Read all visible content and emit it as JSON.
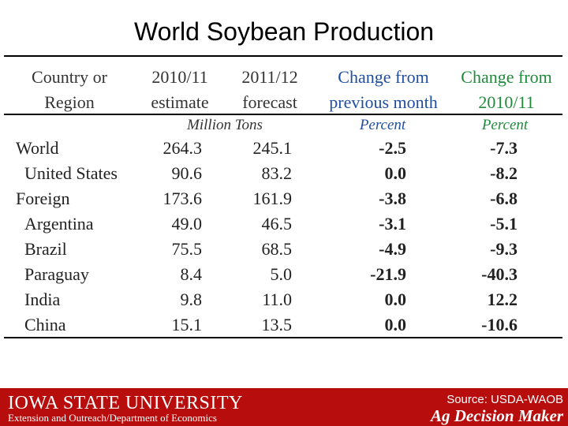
{
  "title": "World Soybean Production",
  "columns": [
    {
      "line1": "Country or",
      "line2": "Region",
      "color": "#333333"
    },
    {
      "line1": "2010/11",
      "line2": "estimate",
      "color": "#333333"
    },
    {
      "line1": "2011/12",
      "line2": "forecast",
      "color": "#333333"
    },
    {
      "line1": "Change from",
      "line2": "previous month",
      "color": "#1f4e9e"
    },
    {
      "line1": "Change from",
      "line2": "2010/11",
      "color": "#1f8a3a"
    }
  ],
  "units": {
    "tons": "Million Tons",
    "pct_month": "Percent",
    "pct_year": "Percent"
  },
  "rows": [
    {
      "region": "World",
      "indent": false,
      "est": "264.3",
      "fcst": "245.1",
      "chg_month": "-2.5",
      "chg_year": "-7.3"
    },
    {
      "region": "United States",
      "indent": true,
      "est": "90.6",
      "fcst": "83.2",
      "chg_month": "0.0",
      "chg_year": "-8.2"
    },
    {
      "region": "Foreign",
      "indent": false,
      "est": "173.6",
      "fcst": "161.9",
      "chg_month": "-3.8",
      "chg_year": "-6.8"
    },
    {
      "region": "Argentina",
      "indent": true,
      "est": "49.0",
      "fcst": "46.5",
      "chg_month": "-3.1",
      "chg_year": "-5.1"
    },
    {
      "region": "Brazil",
      "indent": true,
      "est": "75.5",
      "fcst": "68.5",
      "chg_month": "-4.9",
      "chg_year": "-9.3"
    },
    {
      "region": "Paraguay",
      "indent": true,
      "est": "8.4",
      "fcst": "5.0",
      "chg_month": "-21.9",
      "chg_year": "-40.3"
    },
    {
      "region": "India",
      "indent": true,
      "est": "9.8",
      "fcst": "11.0",
      "chg_month": "0.0",
      "chg_year": "12.2"
    },
    {
      "region": "China",
      "indent": true,
      "est": "15.1",
      "fcst": "13.5",
      "chg_month": "0.0",
      "chg_year": "-10.6"
    }
  ],
  "footer": {
    "university": "IOWA STATE UNIVERSITY",
    "department": "Extension and Outreach/Department of Economics",
    "source": "Source: USDA-WAOB",
    "brand": "Ag Decision Maker",
    "bar_color": "#b70d0d"
  },
  "colors": {
    "blue": "#1f4e9e",
    "green": "#1f8a3a"
  }
}
